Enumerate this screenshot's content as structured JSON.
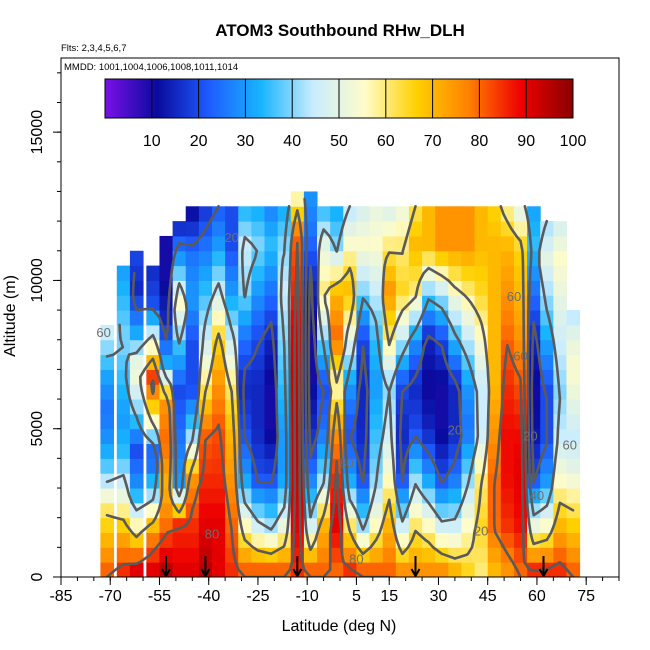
{
  "chart_data": {
    "type": "heatmap",
    "title": "ATOM3 Southbound RHw_DLH",
    "subtitle_lines": [
      "Flts: 2,3,4,5,6,7",
      "MMDD: 1001,1004,1006,1008,1011,1014"
    ],
    "xlabel": "Latitude (deg N)",
    "ylabel": "Altitude (m)",
    "xlim": [
      -85,
      85
    ],
    "ylim": [
      0,
      17500
    ],
    "x_ticks": [
      -85,
      -70,
      -55,
      -40,
      -25,
      -10,
      5,
      15,
      30,
      45,
      60,
      75
    ],
    "y_ticks": [
      0,
      5000,
      10000,
      15000
    ],
    "colorbar": {
      "min": 0,
      "max": 100,
      "ticks": [
        10,
        20,
        30,
        40,
        50,
        60,
        70,
        80,
        90,
        100
      ],
      "colors": [
        "#7a10e8",
        "#0a0a9e",
        "#1e5cff",
        "#18b4ff",
        "#c8ecff",
        "#fffcc8",
        "#ffd000",
        "#ff8000",
        "#ee0000",
        "#8a0000"
      ]
    },
    "contour_levels": [
      20,
      40,
      60,
      80
    ],
    "contour_labels": [
      {
        "text": "20",
        "x": -33,
        "y": 11300
      },
      {
        "text": "60",
        "x": -72,
        "y": 8100
      },
      {
        "text": "60",
        "x": 53,
        "y": 9300
      },
      {
        "text": "60",
        "x": 55,
        "y": 7300
      },
      {
        "text": "80",
        "x": 2,
        "y": 3700
      },
      {
        "text": "20",
        "x": 35,
        "y": 4800
      },
      {
        "text": "20",
        "x": 58,
        "y": 4600
      },
      {
        "text": "60",
        "x": 70,
        "y": 4300
      },
      {
        "text": "40",
        "x": 60,
        "y": 2600
      },
      {
        "text": "80",
        "x": -39,
        "y": 1300
      },
      {
        "text": "80",
        "x": 5,
        "y": 450
      },
      {
        "text": "20",
        "x": 43,
        "y": 1400
      }
    ],
    "flight_markers_lat": [
      -53,
      -41,
      -13,
      23,
      62
    ],
    "profile_columns": [
      {
        "lat": -71,
        "top": 8500,
        "rh": [
          80,
          70,
          60,
          40,
          30,
          25,
          30,
          40,
          50
        ]
      },
      {
        "lat": -66,
        "top": 10300,
        "rh": [
          85,
          70,
          50,
          35,
          30,
          35,
          40,
          35,
          30
        ]
      },
      {
        "lat": -62,
        "top": 10800,
        "rh": [
          90,
          60,
          30,
          20,
          40,
          55,
          30,
          15,
          20
        ]
      },
      {
        "lat": -57,
        "top": 10300,
        "rh": [
          90,
          75,
          40,
          20,
          60,
          85,
          50,
          20,
          15
        ]
      },
      {
        "lat": -53,
        "top": 11300,
        "rh": [
          95,
          80,
          70,
          80,
          75,
          30,
          15,
          10,
          10
        ]
      },
      {
        "lat": -49,
        "top": 12000,
        "rh": [
          90,
          85,
          30,
          25,
          20,
          35,
          55,
          30,
          10
        ]
      },
      {
        "lat": -45,
        "top": 12200,
        "rh": [
          90,
          85,
          75,
          40,
          20,
          20,
          30,
          25,
          10
        ]
      },
      {
        "lat": -41,
        "top": 12500,
        "rh": [
          95,
          90,
          85,
          80,
          60,
          45,
          35,
          25,
          15
        ]
      },
      {
        "lat": -37,
        "top": 12500,
        "rh": [
          90,
          90,
          85,
          82,
          75,
          65,
          45,
          30,
          20
        ]
      },
      {
        "lat": -33,
        "top": 12500,
        "rh": [
          85,
          80,
          75,
          70,
          60,
          45,
          30,
          20,
          20
        ]
      },
      {
        "lat": -29,
        "top": 12500,
        "rh": [
          80,
          55,
          30,
          20,
          15,
          25,
          40,
          45,
          30
        ]
      },
      {
        "lat": -25,
        "top": 12500,
        "rh": [
          80,
          45,
          20,
          15,
          15,
          20,
          30,
          40,
          30
        ]
      },
      {
        "lat": -21,
        "top": 12500,
        "rh": [
          80,
          40,
          20,
          10,
          10,
          15,
          25,
          35,
          25
        ]
      },
      {
        "lat": -17,
        "top": 12500,
        "rh": [
          80,
          50,
          30,
          30,
          35,
          40,
          45,
          40,
          30
        ]
      },
      {
        "lat": -13,
        "top": 12900,
        "rh": [
          85,
          90,
          92,
          93,
          92,
          90,
          85,
          80,
          50
        ]
      },
      {
        "lat": -9,
        "top": 12900,
        "rh": [
          80,
          45,
          25,
          15,
          10,
          10,
          15,
          25,
          30
        ]
      },
      {
        "lat": -5,
        "top": 12500,
        "rh": [
          80,
          70,
          40,
          25,
          20,
          40,
          60,
          50,
          30
        ]
      },
      {
        "lat": -1,
        "top": 12500,
        "rh": [
          80,
          90,
          85,
          75,
          55,
          80,
          70,
          40,
          30
        ]
      },
      {
        "lat": 3,
        "top": 12500,
        "rh": [
          85,
          60,
          30,
          20,
          30,
          50,
          70,
          55,
          40
        ]
      },
      {
        "lat": 7,
        "top": 12500,
        "rh": [
          80,
          40,
          20,
          15,
          15,
          20,
          40,
          55,
          45
        ]
      },
      {
        "lat": 11,
        "top": 12500,
        "rh": [
          80,
          55,
          40,
          35,
          30,
          35,
          45,
          55,
          50
        ]
      },
      {
        "lat": 15,
        "top": 12500,
        "rh": [
          80,
          70,
          55,
          45,
          40,
          60,
          75,
          60,
          45
        ]
      },
      {
        "lat": 19,
        "top": 12500,
        "rh": [
          75,
          45,
          20,
          15,
          20,
          45,
          65,
          60,
          50
        ]
      },
      {
        "lat": 23,
        "top": 12500,
        "rh": [
          75,
          60,
          40,
          20,
          15,
          30,
          60,
          70,
          60
        ]
      },
      {
        "lat": 27,
        "top": 12500,
        "rh": [
          75,
          55,
          30,
          15,
          10,
          15,
          40,
          70,
          70
        ]
      },
      {
        "lat": 31,
        "top": 12500,
        "rh": [
          75,
          45,
          20,
          10,
          10,
          20,
          45,
          75,
          75
        ]
      },
      {
        "lat": 35,
        "top": 12500,
        "rh": [
          70,
          45,
          25,
          15,
          15,
          35,
          55,
          75,
          75
        ]
      },
      {
        "lat": 39,
        "top": 12500,
        "rh": [
          65,
          55,
          40,
          25,
          30,
          45,
          60,
          75,
          75
        ]
      },
      {
        "lat": 43,
        "top": 12500,
        "rh": [
          60,
          65,
          60,
          45,
          45,
          55,
          65,
          70,
          70
        ]
      },
      {
        "lat": 47,
        "top": 12500,
        "rh": [
          70,
          80,
          80,
          75,
          70,
          70,
          70,
          70,
          65
        ]
      },
      {
        "lat": 51,
        "top": 12500,
        "rh": [
          75,
          85,
          88,
          88,
          85,
          80,
          75,
          70,
          55
        ]
      },
      {
        "lat": 55,
        "top": 12500,
        "rh": [
          80,
          88,
          90,
          88,
          82,
          75,
          70,
          65,
          45
        ]
      },
      {
        "lat": 59,
        "top": 12500,
        "rh": [
          85,
          50,
          20,
          12,
          10,
          15,
          25,
          35,
          30
        ]
      },
      {
        "lat": 63,
        "top": 12000,
        "rh": [
          85,
          55,
          30,
          20,
          20,
          30,
          40,
          50,
          40
        ]
      },
      {
        "lat": 67,
        "top": 12000,
        "rh": [
          85,
          70,
          55,
          45,
          40,
          45,
          50,
          55,
          45
        ]
      },
      {
        "lat": 71,
        "top": 9000,
        "rh": [
          80,
          70,
          60,
          50,
          45,
          50,
          55,
          50,
          40
        ]
      }
    ]
  }
}
